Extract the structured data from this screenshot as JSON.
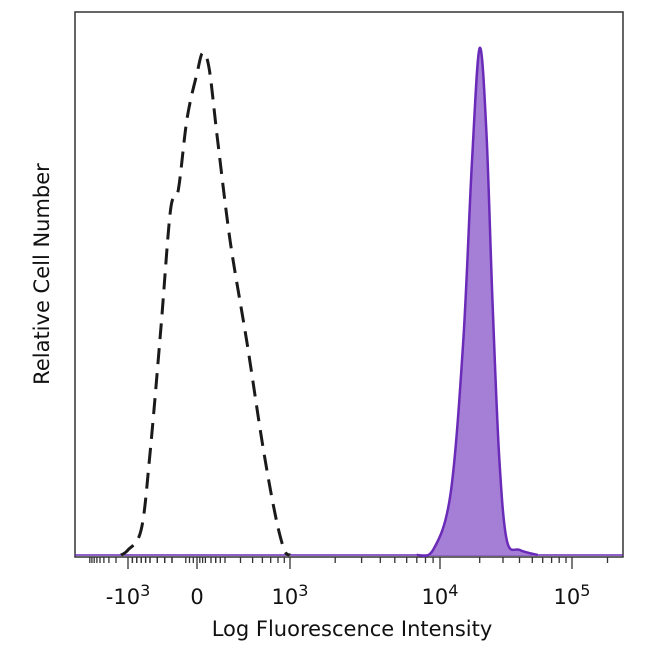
{
  "chart_data": {
    "type": "area",
    "xlabel": "Log Fluorescence Intensity",
    "ylabel": "Relative Cell Number",
    "x_scale": "biexponential",
    "x_ticks": [
      {
        "value": -1000,
        "base": "-10",
        "exp": "3"
      },
      {
        "value": 0,
        "base": "0",
        "exp": ""
      },
      {
        "value": 1000,
        "base": "10",
        "exp": "3"
      },
      {
        "value": 10000,
        "base": "10",
        "exp": "4"
      },
      {
        "value": 100000,
        "base": "10",
        "exp": "5"
      }
    ],
    "ylim": [
      0,
      100
    ],
    "grid": false,
    "series": [
      {
        "style": "dashed-outline",
        "color": "#1a1a1a",
        "points": [
          [
            -1500,
            0
          ],
          [
            -1000,
            1
          ],
          [
            -700,
            5
          ],
          [
            -500,
            20
          ],
          [
            -350,
            45
          ],
          [
            -220,
            68
          ],
          [
            -150,
            72
          ],
          [
            -80,
            86
          ],
          [
            0,
            95
          ],
          [
            60,
            99
          ],
          [
            130,
            96
          ],
          [
            220,
            82
          ],
          [
            330,
            62
          ],
          [
            450,
            42
          ],
          [
            600,
            22
          ],
          [
            760,
            8
          ],
          [
            900,
            1
          ],
          [
            1000,
            0
          ]
        ]
      },
      {
        "style": "filled",
        "color": "#6a2bb8",
        "fill": "#a57fd6",
        "points": [
          [
            7000,
            0
          ],
          [
            9000,
            1
          ],
          [
            12000,
            12
          ],
          [
            15000,
            42
          ],
          [
            17500,
            78
          ],
          [
            20000,
            100
          ],
          [
            22500,
            83
          ],
          [
            25000,
            50
          ],
          [
            28000,
            20
          ],
          [
            32000,
            3
          ],
          [
            40000,
            1
          ],
          [
            55000,
            0
          ]
        ]
      }
    ]
  }
}
